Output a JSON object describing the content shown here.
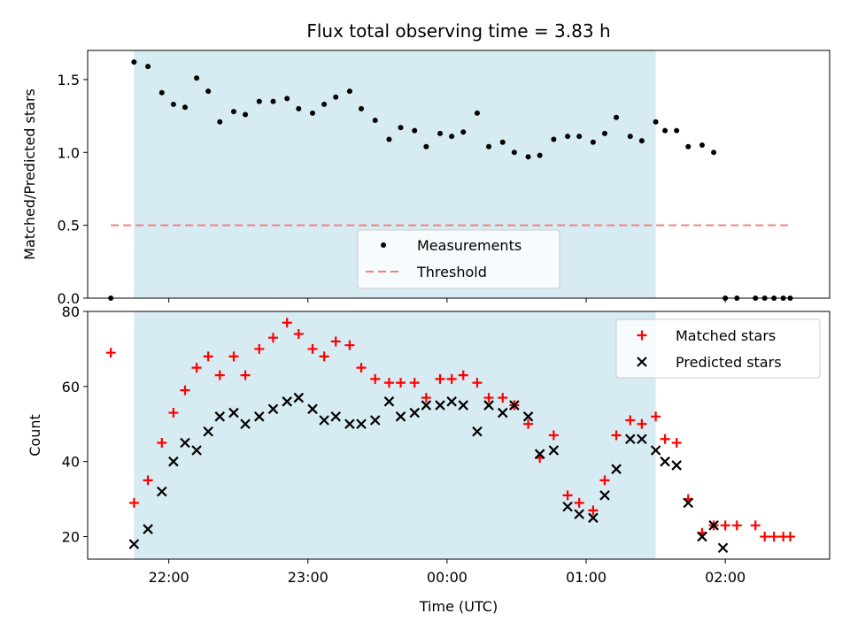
{
  "chart_data": [
    {
      "type": "scatter",
      "title": "Flux total observing time = 3.83 h",
      "ylabel": "Matched/Predicted stars",
      "ylim": [
        0,
        1.7
      ],
      "yticks": [
        0.0,
        0.5,
        1.0,
        1.5
      ],
      "ytick_labels": [
        "0.0",
        "0.5",
        "1.0",
        "1.5"
      ],
      "shaded_span": {
        "start": "21:45",
        "end": "01:30",
        "color": "#add8e6"
      },
      "legend": {
        "placement": "lower-center",
        "entries": [
          "Measurements",
          "Threshold"
        ]
      },
      "series": [
        {
          "name": "Measurements",
          "color": "#000000",
          "x": [
            "21:35",
            "21:45",
            "21:51",
            "21:57",
            "22:02",
            "22:07",
            "22:12",
            "22:17",
            "22:22",
            "22:28",
            "22:33",
            "22:39",
            "22:45",
            "22:51",
            "22:56",
            "23:02",
            "23:07",
            "23:12",
            "23:18",
            "23:23",
            "23:29",
            "23:35",
            "23:40",
            "23:46",
            "23:51",
            "23:57",
            "00:02",
            "00:07",
            "00:13",
            "00:18",
            "00:24",
            "00:29",
            "00:35",
            "00:40",
            "00:46",
            "00:52",
            "00:57",
            "01:03",
            "01:08",
            "01:13",
            "01:19",
            "01:24",
            "01:30",
            "01:34",
            "01:39",
            "01:44",
            "01:50",
            "01:55",
            "02:00",
            "02:05",
            "02:13",
            "02:17",
            "02:21",
            "02:25",
            "02:28"
          ],
          "y": [
            0.0,
            1.62,
            1.59,
            1.41,
            1.33,
            1.31,
            1.51,
            1.42,
            1.21,
            1.28,
            1.26,
            1.35,
            1.35,
            1.37,
            1.3,
            1.27,
            1.33,
            1.38,
            1.42,
            1.3,
            1.22,
            1.09,
            1.17,
            1.15,
            1.04,
            1.13,
            1.11,
            1.14,
            1.27,
            1.04,
            1.07,
            1.0,
            0.97,
            0.98,
            1.09,
            1.11,
            1.11,
            1.07,
            1.13,
            1.24,
            1.11,
            1.08,
            1.21,
            1.15,
            1.15,
            1.04,
            1.05,
            1.0,
            0.0,
            0.0,
            0.0,
            0.0,
            0.0,
            0.0,
            0.0
          ]
        },
        {
          "name": "Threshold",
          "color": "#f08080",
          "x": [
            "21:35",
            "02:28"
          ],
          "y": [
            0.5,
            0.5
          ]
        }
      ]
    },
    {
      "type": "scatter",
      "xlabel": "Time (UTC)",
      "ylabel": "Count",
      "ylim": [
        14,
        80
      ],
      "yticks": [
        20,
        40,
        60,
        80
      ],
      "ytick_labels": [
        "20",
        "40",
        "60",
        "80"
      ],
      "xlim": [
        "21:25",
        "02:45"
      ],
      "xticks": [
        "22:00",
        "23:00",
        "00:00",
        "01:00",
        "02:00"
      ],
      "shaded_span": {
        "start": "21:45",
        "end": "01:30",
        "color": "#add8e6"
      },
      "legend": {
        "placement": "upper-right",
        "entries": [
          "Matched stars",
          "Predicted stars"
        ]
      },
      "series": [
        {
          "name": "Matched stars",
          "color": "#ff0000",
          "x": [
            "21:35",
            "21:45",
            "21:51",
            "21:57",
            "22:02",
            "22:07",
            "22:12",
            "22:17",
            "22:22",
            "22:28",
            "22:33",
            "22:39",
            "22:45",
            "22:51",
            "22:56",
            "23:02",
            "23:07",
            "23:12",
            "23:18",
            "23:23",
            "23:29",
            "23:35",
            "23:40",
            "23:46",
            "23:51",
            "23:57",
            "00:02",
            "00:07",
            "00:13",
            "00:18",
            "00:24",
            "00:29",
            "00:35",
            "00:40",
            "00:46",
            "00:52",
            "00:57",
            "01:03",
            "01:08",
            "01:13",
            "01:19",
            "01:24",
            "01:30",
            "01:34",
            "01:39",
            "01:44",
            "01:50",
            "01:55",
            "02:00",
            "02:05",
            "02:13",
            "02:17",
            "02:21",
            "02:25",
            "02:28"
          ],
          "y": [
            69,
            29,
            35,
            45,
            53,
            59,
            65,
            68,
            63,
            68,
            63,
            70,
            73,
            77,
            74,
            70,
            68,
            72,
            71,
            65,
            62,
            61,
            61,
            61,
            57,
            62,
            62,
            63,
            61,
            57,
            57,
            55,
            50,
            41,
            47,
            31,
            29,
            27,
            35,
            47,
            51,
            50,
            52,
            46,
            45,
            30,
            21,
            23,
            23,
            23,
            23,
            20,
            20,
            20,
            20
          ]
        },
        {
          "name": "Predicted stars",
          "color": "#000000",
          "x": [
            "21:45",
            "21:51",
            "21:57",
            "22:02",
            "22:07",
            "22:12",
            "22:17",
            "22:22",
            "22:28",
            "22:33",
            "22:39",
            "22:45",
            "22:51",
            "22:56",
            "23:02",
            "23:07",
            "23:12",
            "23:18",
            "23:23",
            "23:29",
            "23:35",
            "23:40",
            "23:46",
            "23:51",
            "23:57",
            "00:02",
            "00:07",
            "00:13",
            "00:18",
            "00:24",
            "00:29",
            "00:35",
            "00:40",
            "00:46",
            "00:52",
            "00:57",
            "01:03",
            "01:08",
            "01:13",
            "01:19",
            "01:24",
            "01:30",
            "01:34",
            "01:39",
            "01:44",
            "01:50",
            "01:55",
            "01:59"
          ],
          "y": [
            18,
            22,
            32,
            40,
            45,
            43,
            48,
            52,
            53,
            50,
            52,
            54,
            56,
            57,
            54,
            51,
            52,
            50,
            50,
            51,
            56,
            52,
            53,
            55,
            55,
            56,
            55,
            48,
            55,
            53,
            55,
            52,
            42,
            43,
            28,
            26,
            25,
            31,
            38,
            46,
            46,
            43,
            40,
            39,
            29,
            20,
            23,
            17
          ]
        }
      ]
    }
  ]
}
